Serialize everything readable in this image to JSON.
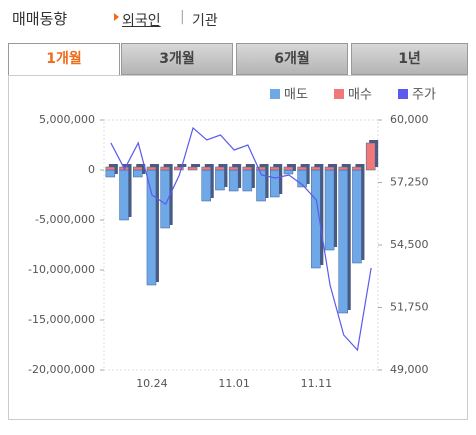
{
  "header": {
    "title": "매매동향",
    "links": [
      "외국인",
      "기관"
    ]
  },
  "tabs": [
    "1개월",
    "3개월",
    "6개월",
    "1년"
  ],
  "chart_data": {
    "type": "bar",
    "categories": [
      null,
      null,
      null,
      "10.24",
      null,
      null,
      null,
      null,
      null,
      "11.01",
      null,
      null,
      null,
      null,
      null,
      "11.11",
      null,
      null,
      null,
      null
    ],
    "series": [
      {
        "name": "매도",
        "color": "#6fa8e6",
        "values": [
          -700000,
          -5000000,
          -700000,
          -11500000,
          -5800000,
          0,
          0,
          -3100000,
          -2000000,
          -2100000,
          -2100000,
          -3100000,
          -2700000,
          -400000,
          -1700000,
          -9800000,
          -8000000,
          -14300000,
          -9300000,
          0
        ]
      },
      {
        "name": "매수",
        "color": "#f07878",
        "values": [
          300000,
          300000,
          300000,
          300000,
          300000,
          300000,
          300000,
          300000,
          300000,
          300000,
          300000,
          300000,
          300000,
          300000,
          300000,
          300000,
          300000,
          300000,
          300000,
          2700000
        ]
      },
      {
        "name": "주가",
        "color": "#5a5aee",
        "type": "line",
        "axis": "y2",
        "values": [
          58990,
          57840,
          58990,
          56700,
          56300,
          57580,
          59650,
          59120,
          59340,
          58680,
          58900,
          57580,
          57450,
          57580,
          57140,
          56480,
          52740,
          50540,
          49880,
          53490
        ]
      }
    ],
    "ylim": [
      -20000000,
      5000000
    ],
    "yticks": [
      {
        "value": 5000000,
        "label": "5,000,000"
      },
      0,
      {
        "value": -5000000,
        "label": "-5,000,000"
      },
      {
        "value": -10000000,
        "label": "-10,000,000"
      },
      {
        "value": -15000000,
        "label": "-15,000,000"
      },
      {
        "value": -20000000,
        "label": "-20,000,000"
      }
    ],
    "y2lim": [
      49000,
      60000
    ],
    "y2ticks": [
      {
        "value": 60000,
        "label": "60,000"
      },
      {
        "value": 57250,
        "label": "57,250"
      },
      {
        "value": 54500,
        "label": "54,500"
      },
      {
        "value": 51750,
        "label": "51,750"
      },
      {
        "value": 49000,
        "label": "49,000"
      }
    ],
    "legend": "top-right"
  }
}
